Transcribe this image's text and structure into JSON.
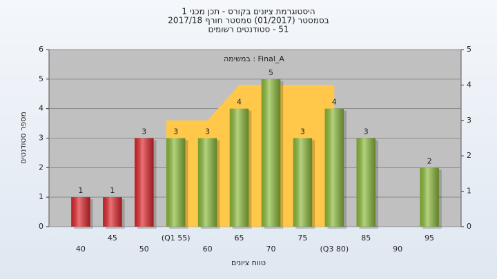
{
  "chart_data": {
    "type": "bar",
    "title_lines": [
      "היסטוגרמת ציונים בקורס - תכן מכני 1",
      "בסמסטר  (01/2017)  סמסטר חורף 2017/18",
      "51 - סטודנטים רשומים"
    ],
    "annotation": "במשימה : Final_A",
    "y_label": "מספר סטודנטים",
    "x_label": "טווח ציונים",
    "categories": [
      "40",
      "45",
      "50",
      "(Q1 55)",
      "60",
      "65",
      "70",
      "75",
      "(Q3 80)",
      "85",
      "90",
      "95"
    ],
    "values": [
      1,
      1,
      3,
      3,
      3,
      4,
      5,
      3,
      4,
      3,
      null,
      2
    ],
    "colors": [
      "#e0262b",
      "#e0262b",
      "#e0262b",
      "#8cbb3a",
      "#8cbb3a",
      "#8cbb3a",
      "#8cbb3a",
      "#8cbb3a",
      "#8cbb3a",
      "#8cbb3a",
      "#8cbb3a",
      "#8cbb3a"
    ],
    "area": {
      "color": "#ffc84a",
      "axis": "y2",
      "values": [
        null,
        null,
        null,
        3,
        3,
        4,
        4,
        4,
        4,
        null,
        null,
        null
      ]
    },
    "ylim": [
      0,
      6
    ],
    "yticks": [
      0,
      1,
      2,
      3,
      4,
      5,
      6
    ],
    "y2lim": [
      0,
      5
    ],
    "y2ticks": [
      0,
      1,
      2,
      3,
      4,
      5
    ],
    "grid": true
  }
}
